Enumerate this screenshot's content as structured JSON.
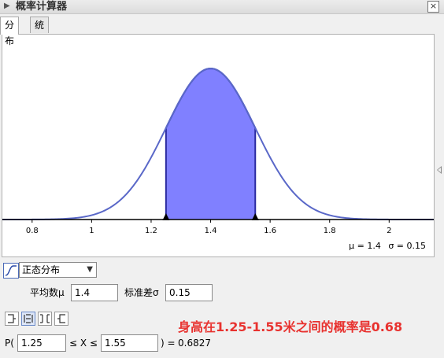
{
  "window": {
    "title": "概率计算器",
    "close_glyph": "×",
    "collapse_icon": "triangle-right-icon"
  },
  "tabs": [
    {
      "label": "分布",
      "active": true
    },
    {
      "label": "统计",
      "active": false
    }
  ],
  "parameters_readout": {
    "mu": "μ = 1.4",
    "sigma": "σ = 0.15"
  },
  "chart_data": {
    "type": "area",
    "distribution": "normal",
    "mean": 1.4,
    "sd": 0.15,
    "shaded_interval": [
      1.25,
      1.55
    ],
    "xlim": [
      0.7,
      2.15
    ],
    "x_ticks": [
      0.8,
      1,
      1.2,
      1.4,
      1.6,
      1.8,
      2
    ],
    "x_tick_labels": [
      "0.8",
      "1",
      "1.2",
      "1.4",
      "1.6",
      "1.8",
      "2"
    ],
    "interval_markers": [
      1.25,
      1.55
    ],
    "curve_color": "#5a68c8",
    "fill_color": "#8080ff",
    "grid": false
  },
  "controls": {
    "distribution_select": "正态分布",
    "mean_label": "平均数μ",
    "mean_value": "1.4",
    "sd_label": "标准差σ",
    "sd_value": "0.15",
    "mode_buttons": [
      "left-sided-icon",
      "interval-icon",
      "two-tailed-icon",
      "right-sided-icon"
    ],
    "prob_prefix": "P(",
    "lower_value": "1.25",
    "inequality": "≤ X ≤",
    "upper_value": "1.55",
    "result_prefix": ") =",
    "result_value": "0.6827"
  },
  "annotation": "身高在1.25-1.55米之间的概率是0.68"
}
